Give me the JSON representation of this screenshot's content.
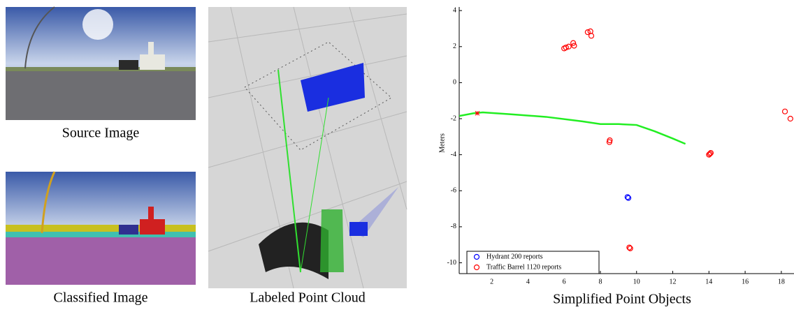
{
  "captions": {
    "source": "Source Image",
    "classified": "Classified Image",
    "cloud": "Labeled Point Cloud"
  },
  "chart_data": {
    "type": "scatter",
    "title": "Simplified Point Objects",
    "ylabel": "Meters",
    "xlim": [
      0.2,
      18.7
    ],
    "ylim": [
      -10.6,
      4.2
    ],
    "xticks": [
      2,
      4,
      6,
      8,
      10,
      12,
      14,
      16,
      18
    ],
    "yticks": [
      -10,
      -8,
      -6,
      -4,
      -2,
      0,
      2,
      4
    ],
    "legend": "lower left",
    "series": [
      {
        "name": "Hydrant 200 reports",
        "color": "#0000ff",
        "x": [
          9.5,
          9.55
        ],
        "values": [
          -6.35,
          -6.4
        ]
      },
      {
        "name": "Traffic Barrel 1120 reports",
        "color": "#ff0000",
        "x": [
          6.0,
          6.1,
          6.25,
          6.5,
          6.55,
          7.3,
          7.45,
          7.5,
          8.5,
          8.52,
          14.0,
          14.1,
          14.05,
          9.6,
          9.65,
          18.2,
          18.5
        ],
        "values": [
          1.9,
          1.95,
          2.0,
          2.2,
          2.05,
          2.8,
          2.85,
          2.6,
          -3.3,
          -3.2,
          -4.0,
          -3.9,
          -3.95,
          -9.15,
          -9.2,
          -1.6,
          -2.0
        ]
      }
    ],
    "path": {
      "color": "#22ee22",
      "x": [
        0.2,
        1.0,
        1.5,
        3.0,
        5.0,
        7.0,
        8.0,
        9.0,
        10.0,
        11.0,
        12.0,
        12.7
      ],
      "values": [
        -1.85,
        -1.7,
        -1.65,
        -1.75,
        -1.9,
        -2.15,
        -2.3,
        -2.3,
        -2.35,
        -2.7,
        -3.1,
        -3.4
      ]
    },
    "start_marker": {
      "color": "#ff0000",
      "x": [
        1.2
      ],
      "values": [
        -1.7
      ]
    }
  }
}
